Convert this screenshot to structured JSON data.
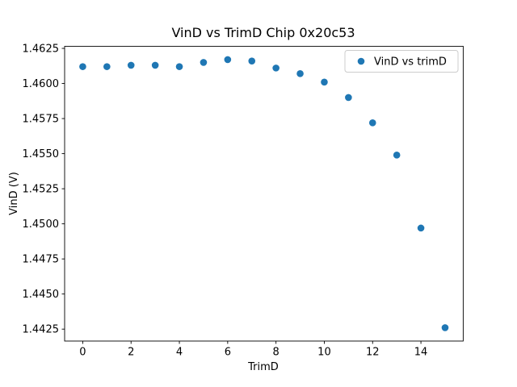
{
  "chart_data": {
    "type": "scatter",
    "title": "VinD vs TrimD Chip 0x20c53",
    "xlabel": "TrimD",
    "ylabel": "VinD (V)",
    "legend_label": "VinD vs trimD",
    "legend_position": "upper right",
    "grid": false,
    "marker_color": "#1f77b4",
    "axis_color": "#000000",
    "legend_border_color": "#cccccc",
    "x": [
      0,
      1,
      2,
      3,
      4,
      5,
      6,
      7,
      8,
      9,
      10,
      11,
      12,
      13,
      14,
      15
    ],
    "y": [
      1.4612,
      1.4612,
      1.4613,
      1.4613,
      1.4612,
      1.4615,
      1.4617,
      1.4616,
      1.4611,
      1.4607,
      1.4601,
      1.459,
      1.4572,
      1.4549,
      1.4497,
      1.4426
    ],
    "xlim": [
      -0.75,
      15.75
    ],
    "ylim": [
      1.44165,
      1.46265
    ],
    "xticks": [
      0,
      2,
      4,
      6,
      8,
      10,
      12,
      14
    ],
    "yticks": [
      1.4425,
      1.445,
      1.4475,
      1.45,
      1.4525,
      1.455,
      1.4575,
      1.46,
      1.4625
    ]
  }
}
